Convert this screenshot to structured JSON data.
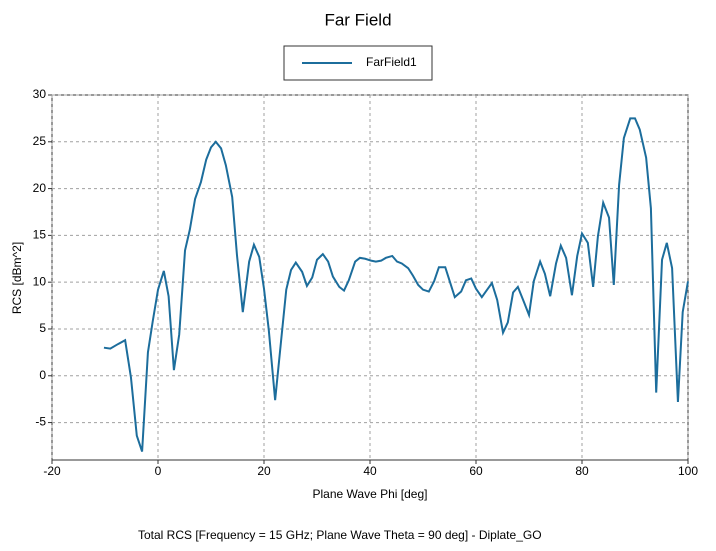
{
  "chart_data": {
    "type": "line",
    "title": "Far Field",
    "xlabel": "Plane Wave Phi [deg]",
    "ylabel": "RCS [dBm^2]",
    "footer": "Total RCS [Frequency = 15 GHz; Plane Wave Theta = 90 deg] - Diplate_GO",
    "xlim": [
      -20,
      100
    ],
    "xticks": [
      -20,
      0,
      20,
      40,
      60,
      80,
      100
    ],
    "ylim": [
      -9,
      30
    ],
    "yticks": [
      -5,
      0,
      5,
      10,
      15,
      20,
      25,
      30
    ],
    "grid": true,
    "legend": "top",
    "x": [
      -10.2,
      -9,
      -7.5,
      -6.2,
      -5.1,
      -4,
      -3,
      -1.9,
      -1,
      0,
      1.1,
      2,
      3,
      4,
      5.1,
      6,
      7,
      8.1,
      9.1,
      10,
      10.9,
      11.9,
      12.8,
      14,
      14.9,
      16,
      17.2,
      18.1,
      19.1,
      20,
      20.9,
      22.1,
      23.2,
      24.2,
      25.1,
      26,
      27.2,
      28.1,
      29.1,
      30,
      31.1,
      32.1,
      33,
      34.2,
      35.1,
      36,
      37.2,
      38.1,
      39.1,
      40.2,
      41.1,
      42.1,
      43,
      44.2,
      45.1,
      46,
      47.2,
      48.1,
      49.1,
      50,
      51.1,
      52.1,
      53,
      54.2,
      55.1,
      56,
      57.2,
      58.1,
      59.1,
      60,
      61.1,
      62.1,
      63,
      64,
      65.1,
      66,
      67,
      67.9,
      69.1,
      70,
      70.9,
      72.1,
      73,
      74,
      75.1,
      76,
      77,
      78.1,
      79.1,
      80,
      81.1,
      82.1,
      83,
      84,
      85.1,
      86,
      87,
      87.9,
      89.1,
      90,
      90.9,
      92.1,
      93,
      94,
      95.1,
      96,
      97,
      98.1,
      99,
      100
    ],
    "series": [
      {
        "name": "FarField1",
        "color": "#1c6d9c",
        "values": [
          3.0,
          2.9,
          3.4,
          3.8,
          -0.2,
          -6.4,
          -8.1,
          2.5,
          5.8,
          9.2,
          11.2,
          8.5,
          0.6,
          4.4,
          13.4,
          15.6,
          18.9,
          20.7,
          23.1,
          24.4,
          25.0,
          24.3,
          22.5,
          19.1,
          12.9,
          6.8,
          12.2,
          14.0,
          12.7,
          9.3,
          4.9,
          -2.6,
          3.6,
          9.2,
          11.3,
          12.1,
          11.1,
          9.6,
          10.5,
          12.4,
          13.0,
          12.2,
          10.6,
          9.5,
          9.1,
          10.2,
          12.2,
          12.6,
          12.5,
          12.3,
          12.2,
          12.3,
          12.6,
          12.8,
          12.2,
          12.0,
          11.5,
          10.7,
          9.7,
          9.2,
          9.0,
          10.1,
          11.6,
          11.6,
          10.0,
          8.4,
          9.0,
          10.2,
          10.4,
          9.3,
          8.4,
          9.2,
          9.9,
          8.1,
          4.6,
          5.7,
          8.9,
          9.5,
          7.8,
          6.5,
          10.1,
          12.2,
          10.9,
          8.5,
          12.0,
          13.9,
          12.6,
          8.6,
          12.8,
          15.2,
          14.2,
          9.5,
          14.9,
          18.5,
          16.9,
          9.7,
          20.4,
          25.4,
          27.5,
          27.5,
          26.3,
          23.3,
          17.9,
          -1.8,
          12.4,
          14.2,
          11.5,
          -2.8,
          6.8,
          10.1
        ]
      }
    ]
  }
}
